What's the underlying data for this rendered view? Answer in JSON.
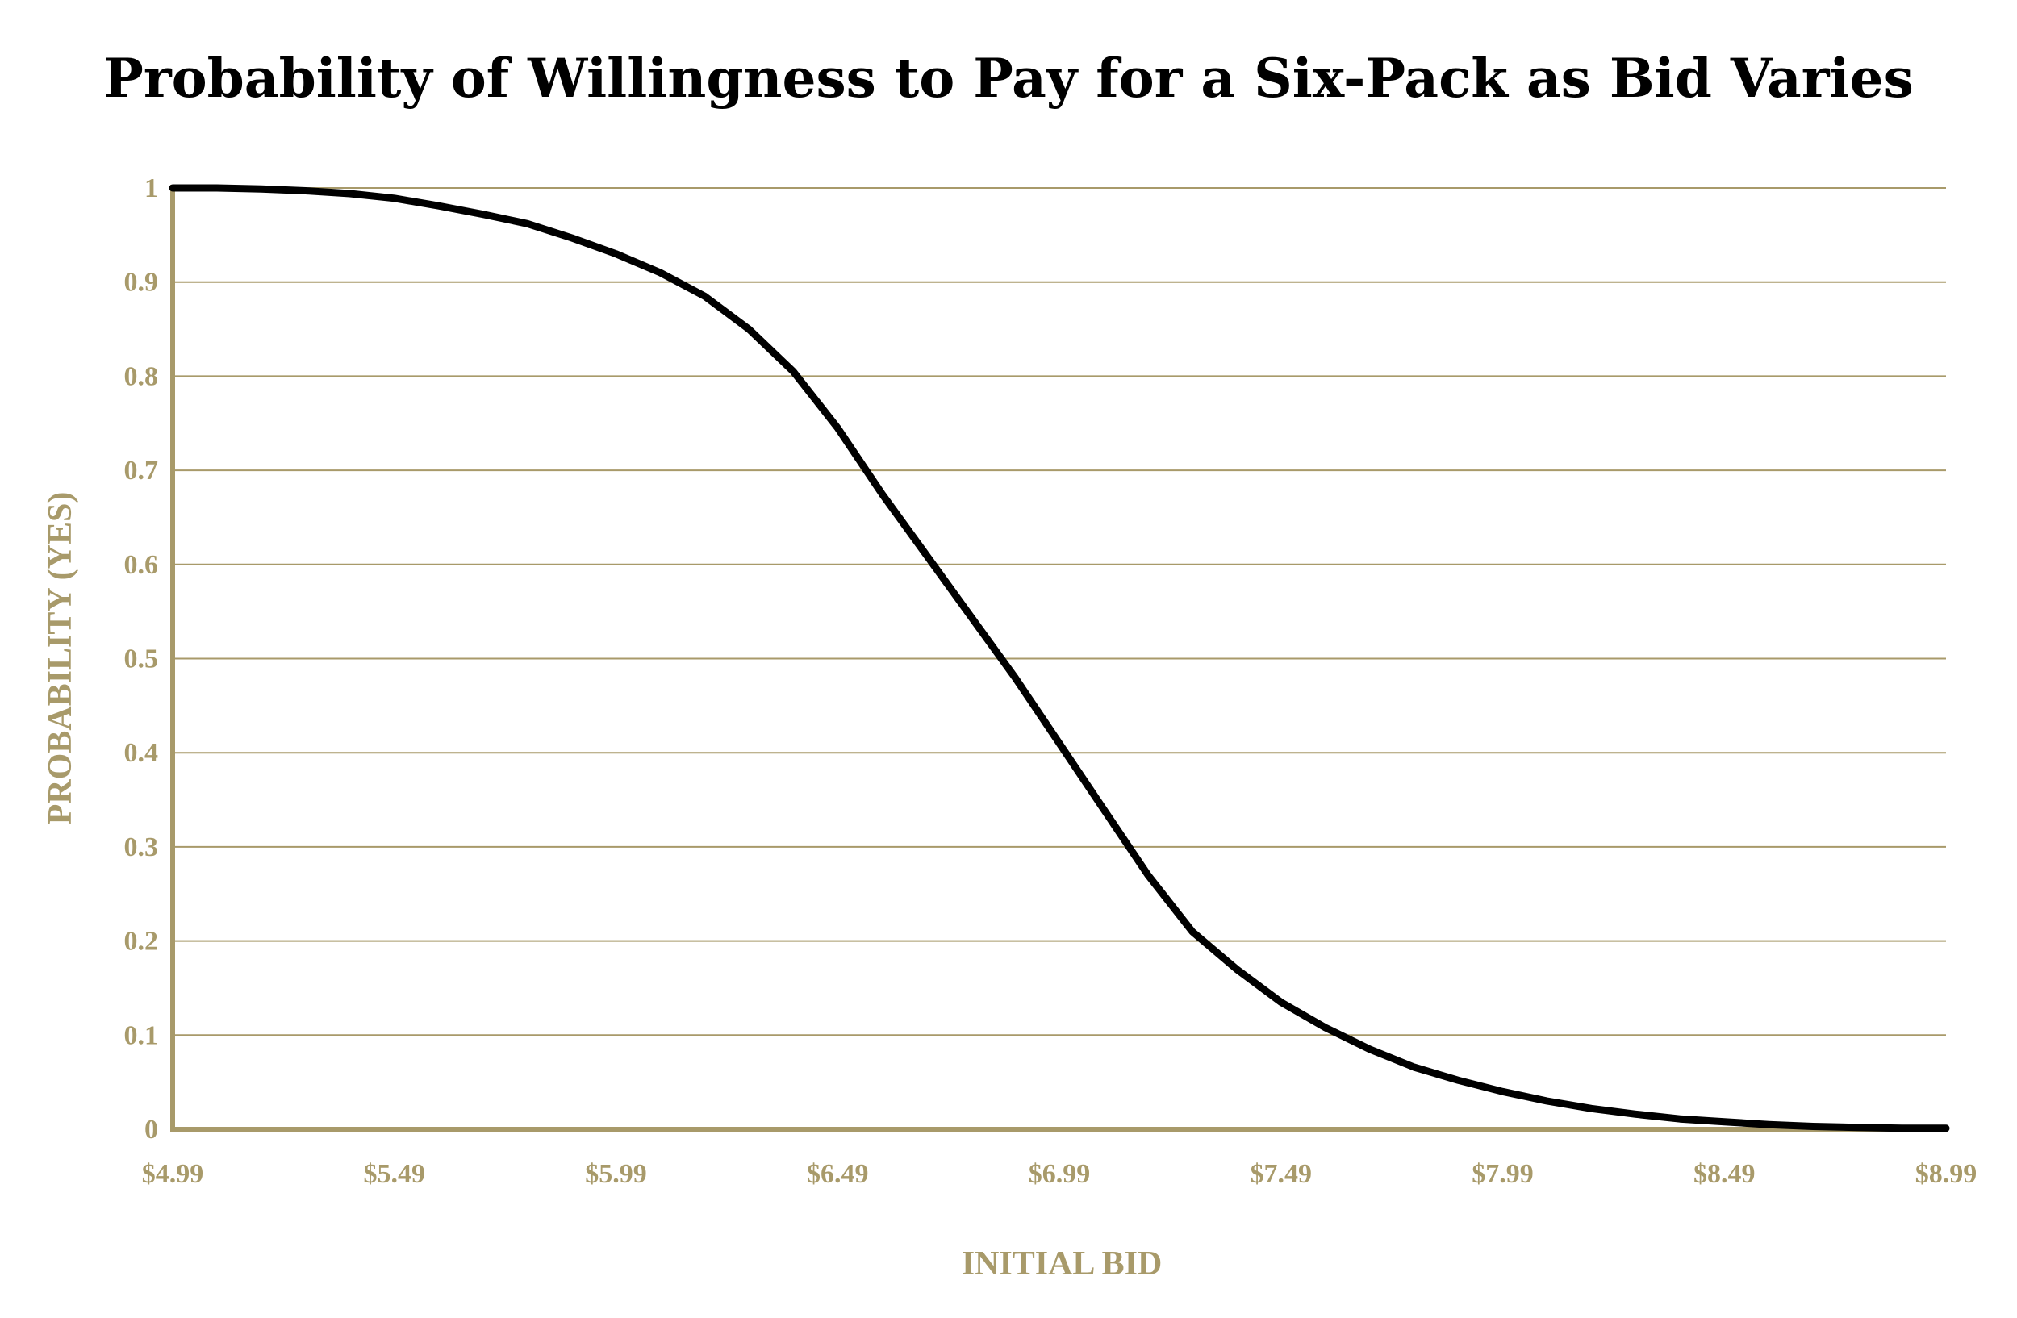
{
  "colors": {
    "axis": "#a89a6a",
    "gridline": "#a89a6a",
    "tick_text": "#a89a6a",
    "series": "#000000",
    "title": "#000000"
  },
  "chart_data": {
    "type": "line",
    "title": "Probability of Willingness to Pay for a Six-Pack as Bid Varies",
    "xlabel": "INITIAL BID",
    "ylabel": "PROBABILITY (YES)",
    "xlim": [
      4.99,
      8.99
    ],
    "ylim": [
      0,
      1
    ],
    "grid": true,
    "legend": "none",
    "x_ticks": [
      4.99,
      5.49,
      5.99,
      6.49,
      6.99,
      7.49,
      7.99,
      8.49,
      8.99
    ],
    "x_tick_labels": [
      "$4.99",
      "$5.49",
      "$5.99",
      "$6.49",
      "$6.99",
      "$7.49",
      "$7.99",
      "$8.49",
      "$8.99"
    ],
    "y_ticks": [
      0,
      0.1,
      0.2,
      0.3,
      0.4,
      0.5,
      0.6,
      0.7,
      0.8,
      0.9,
      1
    ],
    "y_tick_labels": [
      "0",
      "0.1",
      "0.2",
      "0.3",
      "0.4",
      "0.5",
      "0.6",
      "0.7",
      "0.8",
      "0.9",
      "1"
    ],
    "series": [
      {
        "name": "Probability (Yes)",
        "x": [
          4.99,
          5.09,
          5.19,
          5.29,
          5.39,
          5.49,
          5.59,
          5.69,
          5.79,
          5.89,
          5.99,
          6.09,
          6.19,
          6.29,
          6.39,
          6.49,
          6.59,
          6.69,
          6.79,
          6.89,
          6.99,
          7.09,
          7.19,
          7.29,
          7.39,
          7.49,
          7.59,
          7.69,
          7.79,
          7.89,
          7.99,
          8.09,
          8.19,
          8.29,
          8.39,
          8.49,
          8.59,
          8.69,
          8.79,
          8.89,
          8.99
        ],
        "y": [
          1.0,
          1.0,
          0.999,
          0.997,
          0.994,
          0.989,
          0.981,
          0.972,
          0.962,
          0.947,
          0.93,
          0.91,
          0.885,
          0.85,
          0.805,
          0.745,
          0.675,
          0.61,
          0.545,
          0.48,
          0.41,
          0.34,
          0.27,
          0.21,
          0.17,
          0.135,
          0.108,
          0.085,
          0.066,
          0.052,
          0.04,
          0.03,
          0.022,
          0.016,
          0.011,
          0.008,
          0.005,
          0.003,
          0.002,
          0.001,
          0.001
        ]
      }
    ]
  }
}
